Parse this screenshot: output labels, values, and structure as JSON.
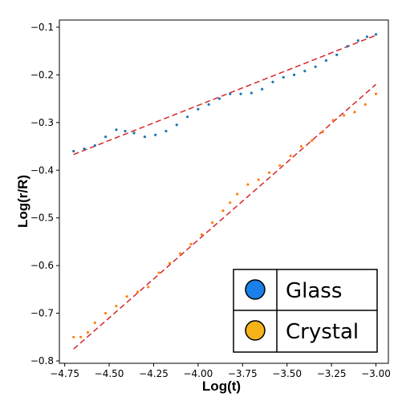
{
  "chart_data": {
    "type": "scatter",
    "xlabel": "Log(t)",
    "ylabel": "Log(r/R)",
    "xlim": [
      -4.78,
      -2.93
    ],
    "ylim": [
      -0.805,
      -0.085
    ],
    "xticks": [
      -4.75,
      -4.5,
      -4.25,
      -4.0,
      -3.75,
      -3.5,
      -3.25,
      -3.0
    ],
    "xtick_labels": [
      "−4.75",
      "−4.50",
      "−4.25",
      "−4.00",
      "−3.75",
      "−3.50",
      "−3.25",
      "−3.00"
    ],
    "yticks": [
      -0.8,
      -0.7,
      -0.6,
      -0.5,
      -0.4,
      -0.3,
      -0.2,
      -0.1
    ],
    "ytick_labels": [
      "−0.8",
      "−0.7",
      "−0.6",
      "−0.5",
      "−0.4",
      "−0.3",
      "−0.2",
      "−0.1"
    ],
    "grid": false,
    "legend_position": "bottom-right",
    "series": [
      {
        "name": "Glass",
        "color": "#1f77b4",
        "marker_size": "small",
        "points": [
          [
            -4.7,
            -0.36
          ],
          [
            -4.64,
            -0.355
          ],
          [
            -4.58,
            -0.348
          ],
          [
            -4.52,
            -0.33
          ],
          [
            -4.46,
            -0.315
          ],
          [
            -4.41,
            -0.318
          ],
          [
            -4.36,
            -0.322
          ],
          [
            -4.3,
            -0.33
          ],
          [
            -4.24,
            -0.326
          ],
          [
            -4.18,
            -0.318
          ],
          [
            -4.12,
            -0.305
          ],
          [
            -4.06,
            -0.288
          ],
          [
            -4.0,
            -0.272
          ],
          [
            -3.94,
            -0.262
          ],
          [
            -3.88,
            -0.25
          ],
          [
            -3.82,
            -0.24
          ],
          [
            -3.76,
            -0.24
          ],
          [
            -3.7,
            -0.238
          ],
          [
            -3.64,
            -0.23
          ],
          [
            -3.58,
            -0.215
          ],
          [
            -3.52,
            -0.205
          ],
          [
            -3.46,
            -0.2
          ],
          [
            -3.4,
            -0.192
          ],
          [
            -3.34,
            -0.183
          ],
          [
            -3.28,
            -0.17
          ],
          [
            -3.22,
            -0.158
          ],
          [
            -3.16,
            -0.14
          ],
          [
            -3.1,
            -0.128
          ],
          [
            -3.05,
            -0.12
          ],
          [
            -3.0,
            -0.115
          ]
        ]
      },
      {
        "name": "Crystal",
        "color": "#ff7f0e",
        "marker_size": "small",
        "points": [
          [
            -4.7,
            -0.75
          ],
          [
            -4.66,
            -0.75
          ],
          [
            -4.62,
            -0.74
          ],
          [
            -4.58,
            -0.72
          ],
          [
            -4.52,
            -0.7
          ],
          [
            -4.46,
            -0.685
          ],
          [
            -4.4,
            -0.665
          ],
          [
            -4.34,
            -0.655
          ],
          [
            -4.28,
            -0.645
          ],
          [
            -4.22,
            -0.615
          ],
          [
            -4.16,
            -0.595
          ],
          [
            -4.1,
            -0.575
          ],
          [
            -4.04,
            -0.555
          ],
          [
            -3.98,
            -0.535
          ],
          [
            -3.92,
            -0.51
          ],
          [
            -3.86,
            -0.485
          ],
          [
            -3.82,
            -0.468
          ],
          [
            -3.78,
            -0.45
          ],
          [
            -3.72,
            -0.43
          ],
          [
            -3.66,
            -0.42
          ],
          [
            -3.6,
            -0.405
          ],
          [
            -3.54,
            -0.39
          ],
          [
            -3.48,
            -0.37
          ],
          [
            -3.42,
            -0.35
          ],
          [
            -3.36,
            -0.338
          ],
          [
            -3.3,
            -0.32
          ],
          [
            -3.24,
            -0.295
          ],
          [
            -3.18,
            -0.285
          ],
          [
            -3.12,
            -0.278
          ],
          [
            -3.06,
            -0.262
          ],
          [
            -3.0,
            -0.24
          ]
        ]
      }
    ],
    "fits": [
      {
        "series": "Glass",
        "color": "#d62728",
        "style": "dashed",
        "x": [
          -4.7,
          -3.0
        ],
        "y": [
          -0.367,
          -0.117
        ]
      },
      {
        "series": "Crystal",
        "color": "#d62728",
        "style": "dashed",
        "x": [
          -4.7,
          -3.0
        ],
        "y": [
          -0.775,
          -0.22
        ]
      }
    ],
    "legend": [
      {
        "label": "Glass",
        "marker_color": "#1a7fe8"
      },
      {
        "label": "Crystal",
        "marker_color": "#f5b318"
      }
    ]
  }
}
